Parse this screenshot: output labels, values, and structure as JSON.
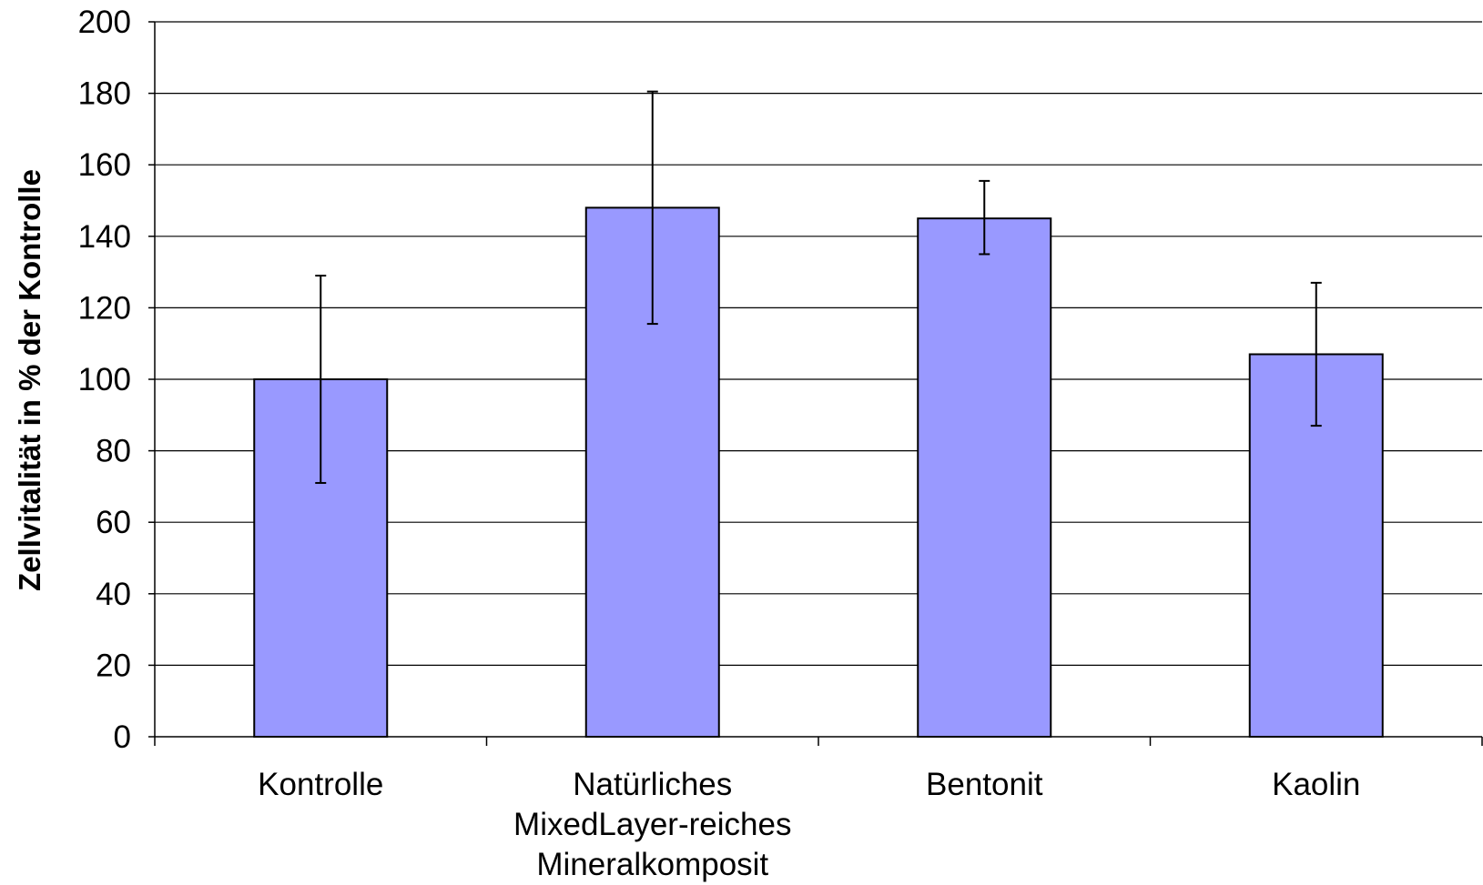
{
  "chart_data": {
    "type": "bar",
    "categories": [
      [
        "Kontrolle"
      ],
      [
        "Natürliches",
        "MixedLayer-reiches",
        "Mineralkomposit"
      ],
      [
        "Bentonit"
      ],
      [
        "Kaolin"
      ]
    ],
    "values": [
      100,
      148,
      145,
      107
    ],
    "error_low": [
      71,
      115.5,
      135,
      87
    ],
    "error_high": [
      129,
      180.5,
      155.5,
      127
    ],
    "title": "",
    "xlabel": "",
    "ylabel": "Zellvitalität in % der Kontrolle",
    "ylim": [
      0,
      200
    ],
    "yticks": [
      0,
      20,
      40,
      60,
      80,
      100,
      120,
      140,
      160,
      180,
      200
    ],
    "grid": true,
    "legend": "none",
    "colors": {
      "bar_fill": "#9999ff",
      "bar_stroke": "#000000",
      "gridline": "#000000",
      "error_bar": "#000000"
    }
  }
}
